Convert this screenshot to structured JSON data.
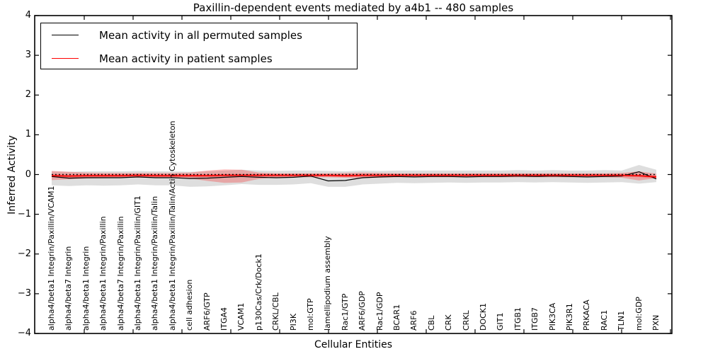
{
  "chart_data": {
    "type": "line",
    "title": "Paxillin-dependent events mediated by a4b1 -- 480 samples",
    "xlabel": "Cellular Entities",
    "ylabel": "Inferred Activity",
    "ylim": [
      -4,
      4
    ],
    "yticks": [
      4,
      3,
      2,
      1,
      0,
      -1,
      -2,
      -3,
      -4
    ],
    "grid": false,
    "legend_position": "upper left",
    "reference_line": {
      "y": 0,
      "style": "dotted",
      "color": "#000000"
    },
    "categories": [
      "alpha4/beta1 Integrin/Paxillin/VCAM1",
      "alpha4/beta7 Integrin",
      "alpha4/beta1 Integrin",
      "alpha4/beta1 Integrin/Paxillin",
      "alpha4/beta7 Integrin/Paxillin",
      "alpha4/beta1 Integrin/Paxillin/GIT1",
      "alpha4/beta1 Integrin/Paxillin/Talin",
      "alpha4/beta1 Integrin/Paxillin/Talin/Actin Cytoskeleton",
      "cell adhesion",
      "ARF6/GTP",
      "ITGA4",
      "VCAM1",
      "p130Cas/Crk/Dock1",
      "CRKL/CBL",
      "PI3K",
      "mol:GTP",
      "lamellipodium assembly",
      "Rac1/GTP",
      "ARF6/GDP",
      "Rac1/GDP",
      "BCAR1",
      "ARF6",
      "CBL",
      "CRK",
      "CRKL",
      "DOCK1",
      "GIT1",
      "ITGB1",
      "ITGB7",
      "PIK3CA",
      "PIK3R1",
      "PRKACA",
      "RAC1",
      "TLN1",
      "mol:GDP",
      "PXN"
    ],
    "series": [
      {
        "name": "Mean activity in all permuted samples",
        "color": "#000000",
        "band_color": "#000000",
        "band_opacity": 0.13,
        "values": [
          -0.05,
          -0.09,
          -0.08,
          -0.08,
          -0.08,
          -0.06,
          -0.08,
          -0.08,
          -0.1,
          -0.09,
          -0.07,
          -0.05,
          -0.07,
          -0.08,
          -0.07,
          -0.04,
          -0.16,
          -0.15,
          -0.08,
          -0.06,
          -0.05,
          -0.06,
          -0.05,
          -0.05,
          -0.06,
          -0.05,
          -0.05,
          -0.04,
          -0.05,
          -0.04,
          -0.05,
          -0.06,
          -0.05,
          -0.04,
          0.07,
          -0.11
        ],
        "band_upper": [
          0.08,
          0.07,
          0.08,
          0.08,
          0.08,
          0.09,
          0.08,
          0.08,
          0.07,
          0.08,
          0.1,
          0.12,
          0.1,
          0.09,
          0.1,
          0.1,
          0.09,
          0.08,
          0.1,
          0.09,
          0.1,
          0.1,
          0.1,
          0.1,
          0.1,
          0.1,
          0.1,
          0.11,
          0.1,
          0.11,
          0.1,
          0.1,
          0.11,
          0.1,
          0.24,
          0.12
        ],
        "band_lower": [
          -0.27,
          -0.29,
          -0.27,
          -0.28,
          -0.27,
          -0.25,
          -0.27,
          -0.27,
          -0.31,
          -0.3,
          -0.27,
          -0.24,
          -0.26,
          -0.26,
          -0.25,
          -0.22,
          -0.31,
          -0.31,
          -0.25,
          -0.23,
          -0.21,
          -0.22,
          -0.21,
          -0.2,
          -0.21,
          -0.2,
          -0.2,
          -0.19,
          -0.2,
          -0.19,
          -0.2,
          -0.21,
          -0.2,
          -0.19,
          -0.23,
          -0.19
        ]
      },
      {
        "name": "Mean activity in patient samples",
        "color": "#ff0000",
        "band_color": "#ff0000",
        "band_opacity": 0.25,
        "values": [
          -0.03,
          -0.04,
          -0.03,
          -0.03,
          -0.03,
          -0.02,
          -0.03,
          -0.03,
          -0.03,
          -0.03,
          -0.02,
          -0.02,
          -0.02,
          -0.02,
          -0.02,
          -0.02,
          -0.02,
          -0.03,
          -0.02,
          -0.02,
          -0.02,
          -0.02,
          -0.02,
          -0.02,
          -0.02,
          -0.02,
          -0.02,
          -0.02,
          -0.02,
          -0.02,
          -0.02,
          -0.02,
          -0.02,
          -0.02,
          -0.03,
          -0.06
        ],
        "band_upper": [
          0.09,
          0.07,
          0.05,
          0.04,
          0.04,
          0.04,
          0.04,
          0.04,
          0.05,
          0.1,
          0.13,
          0.12,
          0.05,
          0.03,
          0.03,
          0.03,
          0.03,
          0.04,
          0.05,
          0.04,
          0.03,
          0.03,
          0.03,
          0.03,
          0.03,
          0.03,
          0.03,
          0.03,
          0.03,
          0.03,
          0.03,
          0.03,
          0.03,
          0.04,
          0.08,
          0.02
        ],
        "band_lower": [
          -0.14,
          -0.12,
          -0.1,
          -0.09,
          -0.08,
          -0.08,
          -0.08,
          -0.08,
          -0.1,
          -0.16,
          -0.21,
          -0.2,
          -0.11,
          -0.07,
          -0.07,
          -0.07,
          -0.07,
          -0.08,
          -0.09,
          -0.08,
          -0.07,
          -0.07,
          -0.07,
          -0.07,
          -0.07,
          -0.07,
          -0.07,
          -0.07,
          -0.07,
          -0.07,
          -0.07,
          -0.07,
          -0.07,
          -0.08,
          -0.15,
          -0.09
        ]
      }
    ]
  }
}
